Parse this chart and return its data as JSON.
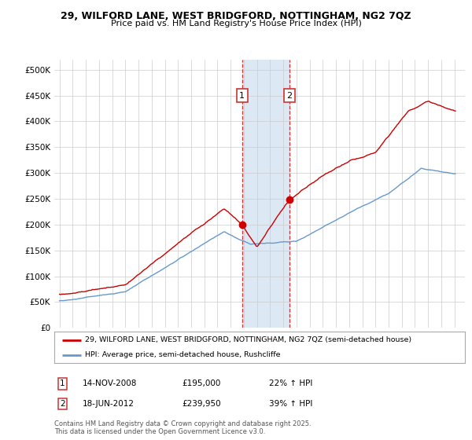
{
  "title_line1": "29, WILFORD LANE, WEST BRIDGFORD, NOTTINGHAM, NG2 7QZ",
  "title_line2": "Price paid vs. HM Land Registry's House Price Index (HPI)",
  "ylim": [
    0,
    520000
  ],
  "yticks": [
    0,
    50000,
    100000,
    150000,
    200000,
    250000,
    300000,
    350000,
    400000,
    450000,
    500000
  ],
  "ytick_labels": [
    "£0",
    "£50K",
    "£100K",
    "£150K",
    "£200K",
    "£250K",
    "£300K",
    "£350K",
    "£400K",
    "£450K",
    "£500K"
  ],
  "transaction1_date": 2008.87,
  "transaction1_price": 195000,
  "transaction1_label": "1",
  "transaction2_date": 2012.46,
  "transaction2_price": 239950,
  "transaction2_label": "2",
  "red_line_color": "#cc0000",
  "blue_line_color": "#6699cc",
  "shade_color": "#dce9f5",
  "grid_color": "#cccccc",
  "background_color": "#ffffff",
  "legend1_text": "29, WILFORD LANE, WEST BRIDGFORD, NOTTINGHAM, NG2 7QZ (semi-detached house)",
  "legend2_text": "HPI: Average price, semi-detached house, Rushcliffe",
  "annotation1_date": "14-NOV-2008",
  "annotation1_price": "£195,000",
  "annotation1_pct": "22% ↑ HPI",
  "annotation2_date": "18-JUN-2012",
  "annotation2_price": "£239,950",
  "annotation2_pct": "39% ↑ HPI",
  "footer_text": "Contains HM Land Registry data © Crown copyright and database right 2025.\nThis data is licensed under the Open Government Licence v3.0."
}
